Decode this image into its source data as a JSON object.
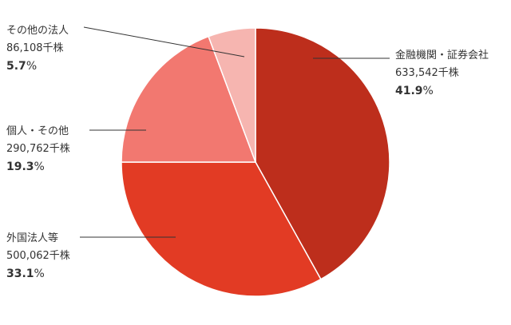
{
  "chart_data": {
    "type": "pie",
    "title": "",
    "slices": [
      {
        "name": "金融機関・証券会社",
        "shares": "633,542千株",
        "value": 41.9,
        "pct_num": "41.9",
        "pct_unit": "%",
        "color": "#bd2e1c"
      },
      {
        "name": "外国法人等",
        "shares": "500,062千株",
        "value": 33.1,
        "pct_num": "33.1",
        "pct_unit": "%",
        "color": "#e23b24"
      },
      {
        "name": "個人・その他",
        "shares": "290,762千株",
        "value": 19.3,
        "pct_num": "19.3",
        "pct_unit": "%",
        "color": "#f27870"
      },
      {
        "name": "その他の法人",
        "shares": "86,108千株",
        "value": 5.7,
        "pct_num": "5.7",
        "pct_unit": "%",
        "color": "#f6b5b0"
      }
    ],
    "start": "12 o'clock",
    "direction": "clockwise",
    "legend": "callout labels with leader lines"
  }
}
